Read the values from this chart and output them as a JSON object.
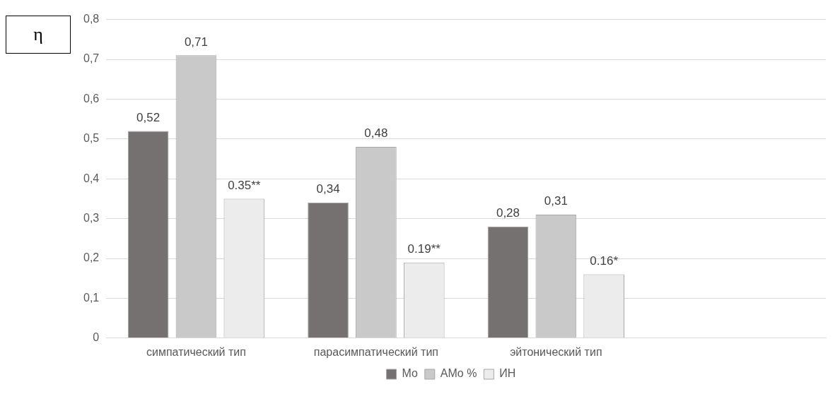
{
  "chart_data": {
    "type": "bar",
    "ylabel": "η",
    "categories": [
      "симпатический тип",
      "парасимпатический тип",
      "эйтонический тип",
      null
    ],
    "series": [
      {
        "name": "Mo",
        "color": "#767171",
        "values": [
          0.52,
          0.34,
          0.28,
          null
        ],
        "value_labels": [
          "0,52",
          "0,34",
          "0,28",
          null
        ]
      },
      {
        "name": "AMo %",
        "color": "#c9c9c9",
        "values": [
          0.71,
          0.48,
          0.31,
          null
        ],
        "value_labels": [
          "0,71",
          "0,48",
          "0,31",
          null
        ]
      },
      {
        "name": "ИН",
        "color": "#ececec",
        "values": [
          0.35,
          0.19,
          0.16,
          null
        ],
        "value_labels": [
          "0.35**",
          "0.19**",
          "0.16*",
          null
        ]
      }
    ],
    "ylim": [
      0,
      0.8
    ],
    "yticks": [
      0,
      {
        "value": 0.1,
        "label": "0,1"
      },
      {
        "value": 0.2,
        "label": "0,2"
      },
      {
        "value": 0.3,
        "label": "0,3"
      },
      {
        "value": 0.4,
        "label": "0,4"
      },
      {
        "value": 0.5,
        "label": "0,5"
      },
      {
        "value": 0.6,
        "label": "0,6"
      },
      {
        "value": 0.7,
        "label": "0,7"
      },
      {
        "value": 0.8,
        "label": "0,8"
      }
    ],
    "grid": "y",
    "legend": "bottom"
  }
}
